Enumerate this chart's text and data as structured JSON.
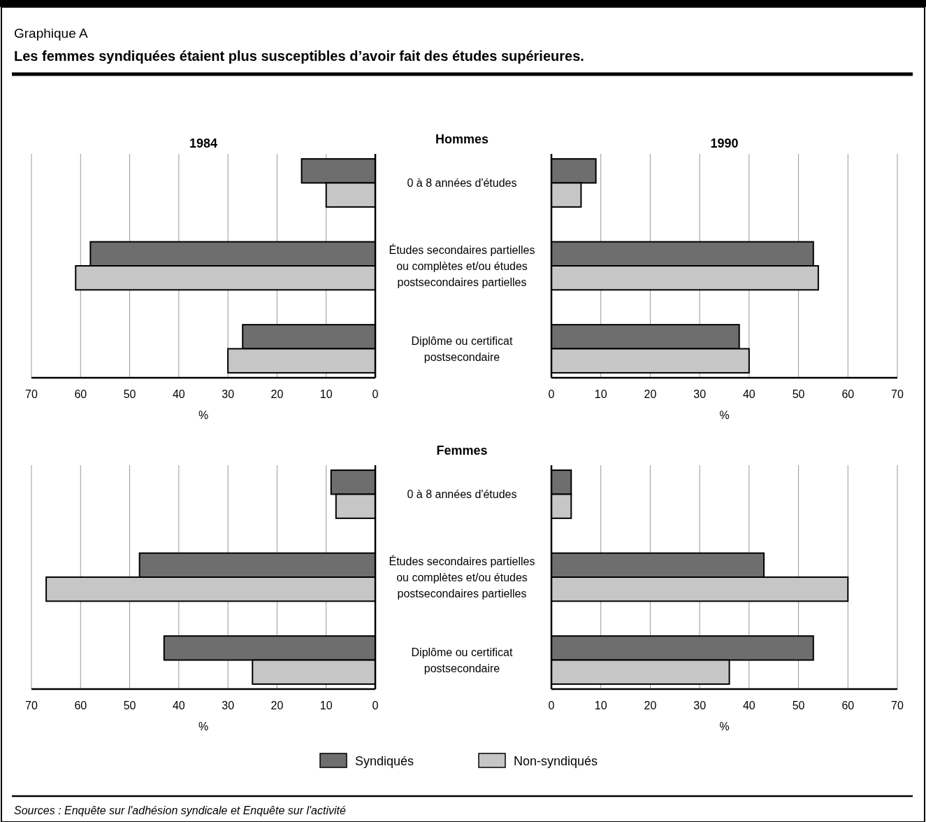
{
  "chart_data": [
    {
      "type": "bar",
      "orientation": "horizontal",
      "title": "1984",
      "subtitle": "Hommes",
      "annotations": [
        "Graphique A",
        "Les femmes syndiquées étaient plus susceptibles d’avoir fait des études supérieures."
      ],
      "categories": [
        "0 à 8 années d'études",
        "Études secondaires partielles ou complètes et/ou études postsecondaires partielles",
        "Diplôme ou certificat postsecondaire"
      ],
      "xlabel": "%",
      "xlim": [
        70,
        0
      ],
      "xticks": [
        70,
        60,
        50,
        40,
        30,
        20,
        10,
        0
      ],
      "grid": "x",
      "series": [
        {
          "color": "#6e6e6e",
          "values": [
            15,
            58,
            27
          ]
        },
        {
          "color": "#c6c6c6",
          "values": [
            10,
            61,
            30
          ]
        }
      ]
    },
    {
      "type": "bar",
      "orientation": "horizontal",
      "title": "1990",
      "categories": [
        null,
        null,
        null
      ],
      "xlabel": "%",
      "xlim": [
        0,
        70
      ],
      "xticks": [
        0,
        10,
        20,
        30,
        40,
        50,
        60,
        70
      ],
      "grid": "x",
      "series": [
        {
          "color": "#6e6e6e",
          "values": [
            9,
            53,
            38
          ]
        },
        {
          "color": "#c6c6c6",
          "values": [
            6,
            54,
            40
          ]
        }
      ]
    },
    {
      "type": "bar",
      "orientation": "horizontal",
      "subtitle": "Femmes",
      "categories": [
        "0 à 8 années d'études",
        "Études secondaires partielles ou complètes et/ou études postsecondaires partielles",
        "Diplôme ou certificat postsecondaire"
      ],
      "xlabel": "%",
      "xlim": [
        70,
        0
      ],
      "xticks": [
        70,
        60,
        50,
        40,
        30,
        20,
        10,
        0
      ],
      "grid": "x",
      "legend": "bottom",
      "series": [
        {
          "name": "Syndiqués",
          "color": "#6e6e6e",
          "values": [
            9,
            48,
            43
          ]
        },
        {
          "name": "Non-syndiqués",
          "color": "#c6c6c6",
          "values": [
            8,
            67,
            25
          ]
        }
      ]
    },
    {
      "type": "bar",
      "orientation": "horizontal",
      "categories": [
        null,
        null,
        null
      ],
      "xlabel": "%",
      "xlim": [
        0,
        70
      ],
      "xticks": [
        0,
        10,
        20,
        30,
        40,
        50,
        60,
        70
      ],
      "grid": "x",
      "annotations": [
        "Sources : Enquête sur l'adhésion syndicale et Enquête sur l'activité"
      ],
      "series": [
        {
          "color": "#6e6e6e",
          "values": [
            4,
            43,
            53
          ]
        },
        {
          "color": "#c6c6c6",
          "values": [
            4,
            60,
            36
          ]
        }
      ]
    }
  ]
}
